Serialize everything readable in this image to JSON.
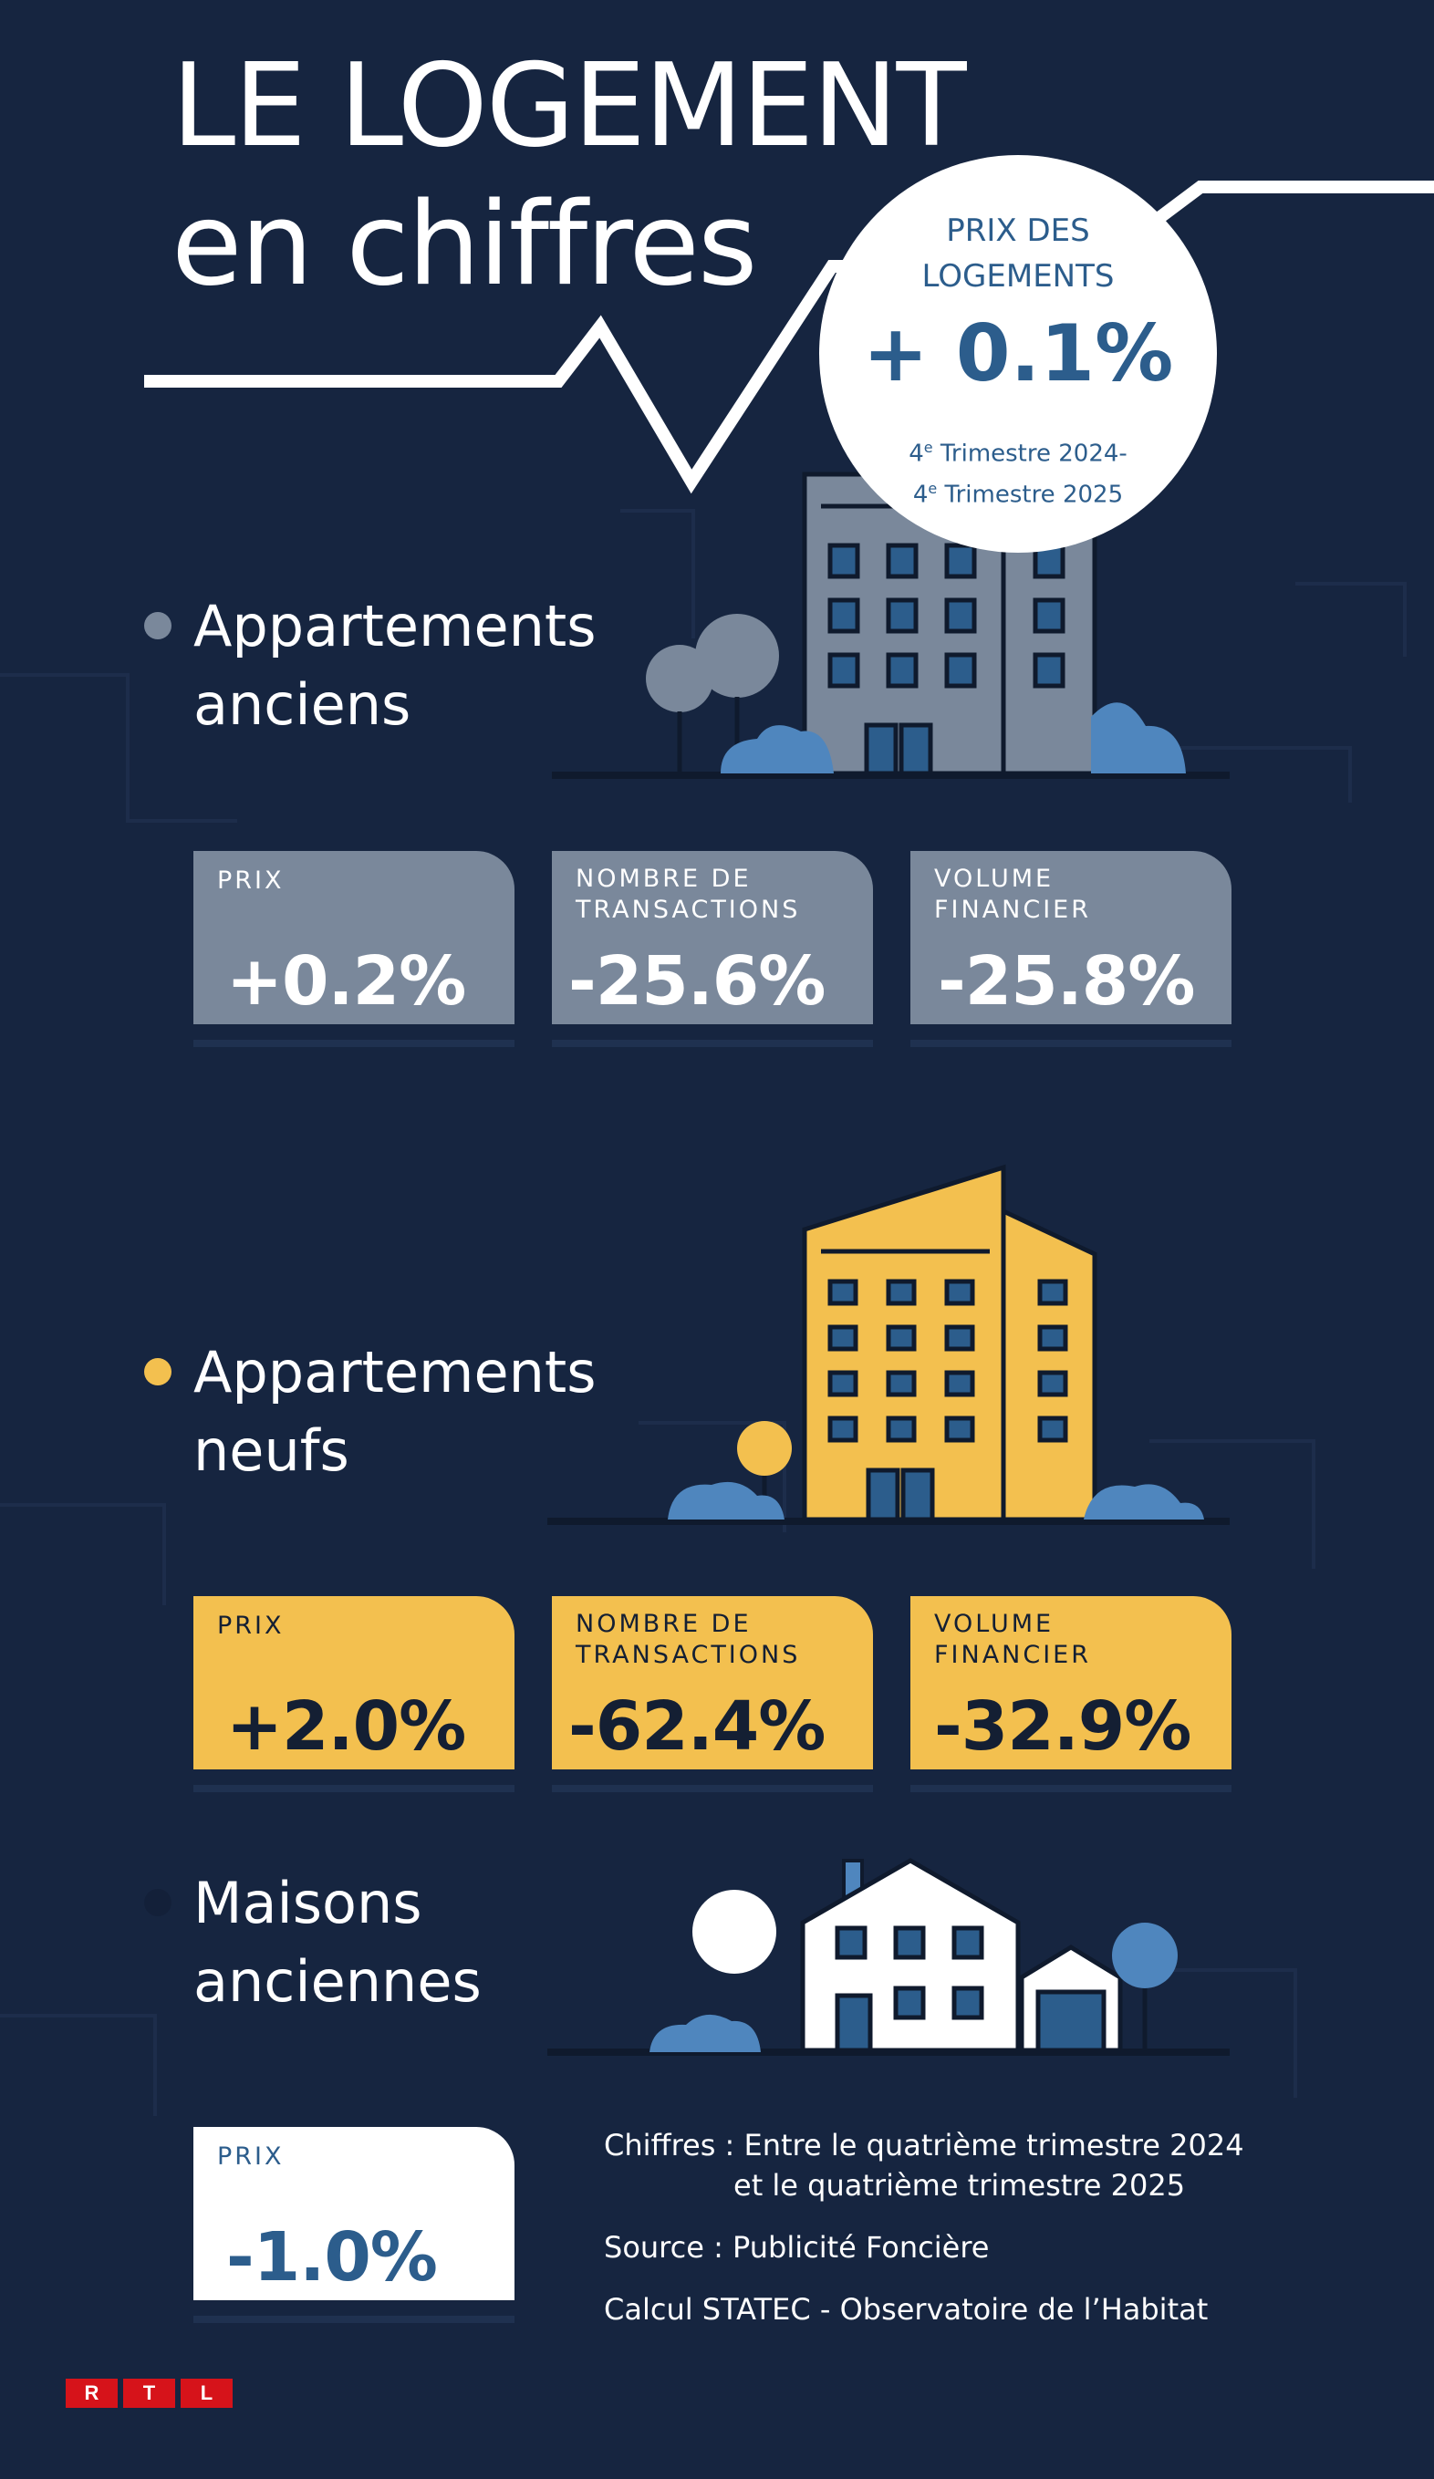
{
  "title": {
    "line1": "LE LOGEMENT",
    "line2": "en chiffres"
  },
  "badge": {
    "label_line1": "PRIX DES",
    "label_line2": "LOGEMENTS",
    "value": "+ 0.1%",
    "period_line1_num": "4",
    "period_line1_sup": "e",
    "period_line1_text": " Trimestre 2024-",
    "period_line2_num": "4",
    "period_line2_sup": "e",
    "period_line2_text": " Trimestre 2025"
  },
  "sections": [
    {
      "title_line1": "Appartements",
      "title_line2": "anciens",
      "color": "#7a889b",
      "cards": [
        {
          "label": "PRIX",
          "value": "+0.2%"
        },
        {
          "label_line1": "NOMBRE DE",
          "label_line2": "TRANSACTIONS",
          "value": "-25.6%"
        },
        {
          "label_line1": "VOLUME",
          "label_line2": "FINANCIER",
          "value": "-25.8%"
        }
      ]
    },
    {
      "title_line1": "Appartements",
      "title_line2": "neufs",
      "color": "#f3c04f",
      "cards": [
        {
          "label": "PRIX",
          "value": "+2.0%"
        },
        {
          "label_line1": "NOMBRE DE",
          "label_line2": "TRANSACTIONS",
          "value": "-62.4%"
        },
        {
          "label_line1": "VOLUME",
          "label_line2": "FINANCIER",
          "value": "-32.9%"
        }
      ]
    },
    {
      "title_line1": "Maisons",
      "title_line2": "anciennes",
      "color": "#ffffff",
      "cards": [
        {
          "label": "PRIX",
          "value": "-1.0%"
        }
      ]
    }
  ],
  "notes": {
    "figures_label": "Chiffres :",
    "figures_line1": "Entre le quatrième trimestre 2024",
    "figures_line2": "et le quatrième trimestre 2025",
    "source_label": "Source :",
    "source_value": "Publicité Foncière",
    "calc": "Calcul STATEC - Observatoire de l’Habitat"
  },
  "logo": {
    "letters": [
      "R",
      "T",
      "L"
    ]
  },
  "colors": {
    "background": "#162540",
    "grey": "#7a889b",
    "yellow": "#f3c04f",
    "blue": "#2c5d8c",
    "icon_blue": "#4f86be",
    "red": "#d6131a"
  }
}
